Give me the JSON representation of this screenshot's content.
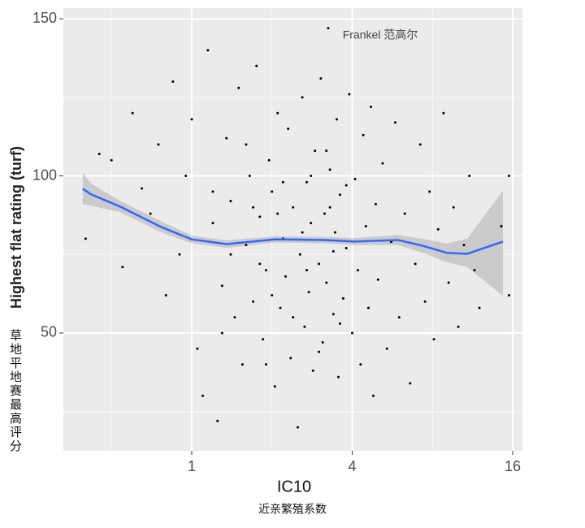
{
  "chart_data": {
    "type": "scatter",
    "x_label": "IC10",
    "x_label_cn": "近亲繁殖系数",
    "y_label": "Highest flat rating (turf)",
    "y_label_cn": "草地平地赛最高评分",
    "annotation": "Frankel 范高尔",
    "x_log_base": 2,
    "xlim": [
      0.33,
      17.4
    ],
    "ylim": [
      12.5,
      153.4
    ],
    "xticks": [
      1,
      4,
      16
    ],
    "yticks": [
      50,
      100,
      150
    ],
    "minor_xticks": [
      0.5,
      2,
      8
    ],
    "minor_yticks": [
      25,
      75,
      125
    ],
    "grid": true,
    "point_color": "#000000",
    "x": [
      0.4,
      0.45,
      0.5,
      0.55,
      0.6,
      0.65,
      0.7,
      0.75,
      0.8,
      0.85,
      0.9,
      0.95,
      1,
      1.05,
      1.1,
      1.15,
      1.2,
      1.25,
      1.3,
      1.35,
      1.4,
      1.45,
      1.5,
      1.55,
      1.6,
      1.65,
      1.7,
      1.75,
      1.8,
      1.85,
      1.9,
      1.95,
      2,
      2.05,
      2.1,
      2.15,
      2.2,
      2.25,
      2.3,
      2.35,
      2.4,
      2.5,
      2.55,
      2.6,
      2.65,
      2.7,
      2.75,
      2.8,
      2.85,
      2.9,
      3,
      3.05,
      3.1,
      3.15,
      3.2,
      3.25,
      3.3,
      3.4,
      3.45,
      3.5,
      3.55,
      3.6,
      3.7,
      3.8,
      3.9,
      4,
      4.1,
      4.2,
      4.3,
      4.4,
      4.5,
      4.6,
      4.7,
      4.8,
      4.9,
      5,
      5.2,
      5.4,
      5.6,
      5.8,
      6,
      6.3,
      6.6,
      6.9,
      7.2,
      7.5,
      7.8,
      8.1,
      8.4,
      8.8,
      9.2,
      9.6,
      10,
      10.5,
      11,
      11.5,
      12,
      14.5,
      15.5,
      15.5,
      1.2,
      1.3,
      1.6,
      1.8,
      2,
      2.2,
      2.4,
      2.6,
      2.8,
      3,
      3.2,
      3.4,
      3.6,
      3.8,
      2.1,
      1.9,
      2.7,
      3.3,
      1.4,
      1.7
    ],
    "y": [
      80,
      107,
      105,
      71,
      120,
      96,
      88,
      110,
      62,
      130,
      75,
      100,
      118,
      45,
      30,
      140,
      85,
      22,
      65,
      112,
      92,
      55,
      128,
      40,
      78,
      100,
      60,
      135,
      87,
      48,
      70,
      105,
      95,
      33,
      120,
      58,
      80,
      68,
      115,
      42,
      90,
      20,
      75,
      125,
      52,
      98,
      63,
      85,
      38,
      108,
      72,
      131,
      47,
      88,
      66,
      147,
      102,
      56,
      82,
      118,
      36,
      94,
      61,
      77,
      126,
      50,
      99,
      70,
      40,
      113,
      84,
      58,
      122,
      30,
      91,
      67,
      104,
      45,
      79,
      117,
      55,
      88,
      34,
      72,
      110,
      60,
      95,
      48,
      83,
      120,
      66,
      90,
      52,
      78,
      100,
      70,
      58,
      84,
      100,
      62,
      95,
      50,
      110,
      72,
      62,
      98,
      55,
      82,
      100,
      44,
      108,
      76,
      53,
      97,
      88,
      40,
      70,
      90,
      75,
      90
    ],
    "smooth": {
      "color": "#3366ff",
      "band_color": "#999999",
      "x": [
        0.39,
        0.42,
        0.54,
        0.77,
        1,
        1.35,
        2.06,
        3.15,
        4.05,
        5.93,
        7.33,
        9.06,
        10.8,
        14.7
      ],
      "y": [
        95.9,
        94.1,
        90.2,
        83.7,
        79.8,
        78.3,
        79.8,
        79.6,
        79.1,
        79.6,
        77.8,
        75.5,
        75.2,
        79.1
      ],
      "upper": [
        101,
        97.5,
        92,
        85.5,
        81,
        79.5,
        80.8,
        80.6,
        80.2,
        81.2,
        80,
        78.5,
        80,
        95.3
      ],
      "lower": [
        91,
        90.5,
        88.4,
        82,
        78.6,
        77.1,
        78.8,
        78.6,
        78,
        78,
        75.6,
        72.5,
        71,
        61.8
      ]
    }
  }
}
